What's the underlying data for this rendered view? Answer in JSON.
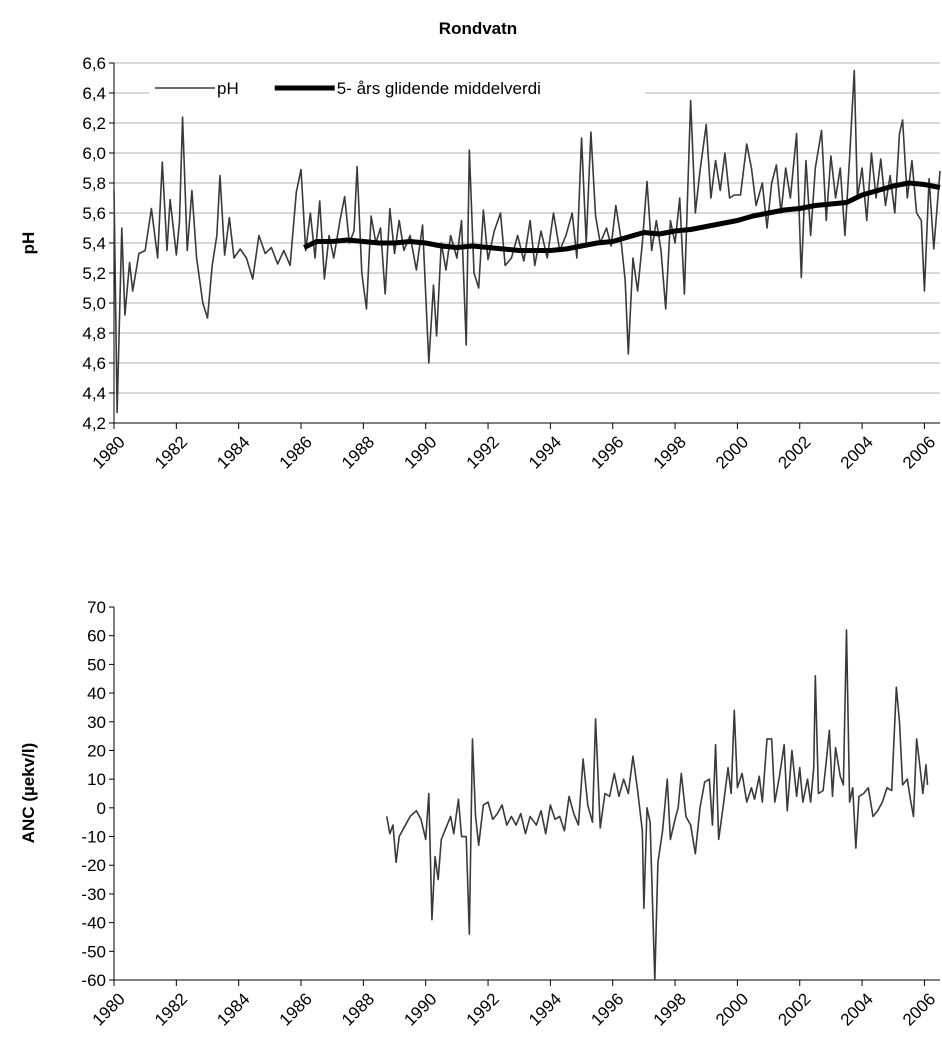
{
  "chart_data": [
    {
      "type": "line",
      "title": "Rondvatn",
      "y_label": "pH",
      "xlim": [
        1980,
        2006.5
      ],
      "xticks": [
        1980,
        1982,
        1984,
        1986,
        1988,
        1990,
        1992,
        1994,
        1996,
        1998,
        2000,
        2002,
        2004,
        2006
      ],
      "ylim": [
        4.2,
        6.6
      ],
      "yticks": [
        {
          "value": 4.2,
          "label": "4,2"
        },
        {
          "value": 4.4,
          "label": "4,4"
        },
        {
          "value": 4.6,
          "label": "4,6"
        },
        {
          "value": 4.8,
          "label": "4,8"
        },
        {
          "value": 5.0,
          "label": "5,0"
        },
        {
          "value": 5.2,
          "label": "5,2"
        },
        {
          "value": 5.4,
          "label": "5,4"
        },
        {
          "value": 5.6,
          "label": "5,6"
        },
        {
          "value": 5.8,
          "label": "5,8"
        },
        {
          "value": 6.0,
          "label": "6,0"
        },
        {
          "value": 6.2,
          "label": "6,2"
        },
        {
          "value": 6.4,
          "label": "6,4"
        },
        {
          "value": 6.6,
          "label": "6,6"
        }
      ],
      "grid": true,
      "legend": "upper left",
      "series": [
        {
          "name": "pH",
          "color": "#3a3a3a",
          "width": 1.6,
          "x": [
            1980.0,
            1980.1,
            1980.25,
            1980.35,
            1980.5,
            1980.6,
            1980.8,
            1981.0,
            1981.2,
            1981.4,
            1981.55,
            1981.7,
            1981.8,
            1982.0,
            1982.1,
            1982.2,
            1982.35,
            1982.5,
            1982.65,
            1982.85,
            1983.0,
            1983.15,
            1983.3,
            1983.4,
            1983.55,
            1983.7,
            1983.85,
            1984.05,
            1984.25,
            1984.45,
            1984.65,
            1984.85,
            1985.05,
            1985.25,
            1985.45,
            1985.65,
            1985.85,
            1986.0,
            1986.15,
            1986.3,
            1986.45,
            1986.6,
            1986.75,
            1986.9,
            1987.05,
            1987.25,
            1987.4,
            1987.55,
            1987.7,
            1987.8,
            1987.95,
            1988.1,
            1988.25,
            1988.4,
            1988.55,
            1988.7,
            1988.85,
            1989.0,
            1989.15,
            1989.3,
            1989.5,
            1989.7,
            1989.9,
            1990.1,
            1990.25,
            1990.35,
            1990.5,
            1990.65,
            1990.8,
            1991.0,
            1991.15,
            1991.3,
            1991.4,
            1991.55,
            1991.7,
            1991.85,
            1992.0,
            1992.2,
            1992.4,
            1992.55,
            1992.75,
            1992.95,
            1993.15,
            1993.35,
            1993.5,
            1993.7,
            1993.9,
            1994.1,
            1994.3,
            1994.5,
            1994.7,
            1994.85,
            1995.0,
            1995.15,
            1995.3,
            1995.45,
            1995.6,
            1995.8,
            1995.95,
            1996.1,
            1996.25,
            1996.4,
            1996.5,
            1996.65,
            1996.8,
            1996.95,
            1997.1,
            1997.25,
            1997.4,
            1997.55,
            1997.7,
            1997.85,
            1998.0,
            1998.15,
            1998.3,
            1998.5,
            1998.65,
            1998.8,
            1999.0,
            1999.15,
            1999.3,
            1999.45,
            1999.6,
            1999.75,
            1999.9,
            2000.1,
            2000.3,
            2000.45,
            2000.6,
            2000.8,
            2000.95,
            2001.1,
            2001.25,
            2001.4,
            2001.55,
            2001.7,
            2001.9,
            2002.05,
            2002.2,
            2002.35,
            2002.5,
            2002.7,
            2002.85,
            2003.0,
            2003.15,
            2003.3,
            2003.45,
            2003.6,
            2003.75,
            2003.85,
            2004.0,
            2004.15,
            2004.3,
            2004.45,
            2004.6,
            2004.75,
            2004.9,
            2005.05,
            2005.2,
            2005.3,
            2005.45,
            2005.6,
            2005.75,
            2005.9,
            2006.0,
            2006.15,
            2006.3,
            2006.5
          ],
          "values": [
            5.75,
            4.27,
            5.5,
            4.92,
            5.27,
            5.08,
            5.33,
            5.35,
            5.63,
            5.3,
            5.94,
            5.35,
            5.69,
            5.32,
            5.54,
            6.24,
            5.35,
            5.75,
            5.3,
            5.0,
            4.9,
            5.25,
            5.45,
            5.85,
            5.32,
            5.57,
            5.3,
            5.36,
            5.3,
            5.16,
            5.45,
            5.33,
            5.37,
            5.26,
            5.35,
            5.25,
            5.74,
            5.89,
            5.35,
            5.6,
            5.3,
            5.68,
            5.16,
            5.45,
            5.3,
            5.55,
            5.71,
            5.4,
            5.48,
            5.91,
            5.2,
            4.96,
            5.58,
            5.4,
            5.5,
            5.06,
            5.63,
            5.33,
            5.55,
            5.35,
            5.45,
            5.22,
            5.52,
            4.6,
            5.12,
            4.78,
            5.4,
            5.22,
            5.45,
            5.3,
            5.55,
            4.72,
            6.02,
            5.2,
            5.1,
            5.62,
            5.29,
            5.48,
            5.6,
            5.25,
            5.3,
            5.45,
            5.28,
            5.55,
            5.25,
            5.48,
            5.3,
            5.6,
            5.35,
            5.45,
            5.6,
            5.3,
            6.1,
            5.4,
            6.14,
            5.58,
            5.4,
            5.5,
            5.38,
            5.65,
            5.45,
            5.15,
            4.66,
            5.3,
            5.08,
            5.4,
            5.81,
            5.35,
            5.55,
            5.35,
            4.96,
            5.55,
            5.4,
            5.7,
            5.06,
            6.35,
            5.6,
            5.88,
            6.19,
            5.7,
            5.95,
            5.75,
            6.0,
            5.7,
            5.72,
            5.72,
            6.06,
            5.9,
            5.65,
            5.8,
            5.5,
            5.8,
            5.92,
            5.6,
            5.9,
            5.7,
            6.13,
            5.17,
            5.95,
            5.45,
            5.9,
            6.15,
            5.55,
            5.98,
            5.7,
            5.9,
            5.45,
            5.97,
            6.55,
            5.7,
            5.9,
            5.55,
            6.0,
            5.7,
            5.96,
            5.65,
            5.85,
            5.6,
            6.13,
            6.22,
            5.7,
            5.95,
            5.6,
            5.55,
            5.08,
            5.83,
            5.36,
            5.88
          ]
        },
        {
          "name": "5- års glidende middelverdi",
          "color": "#000000",
          "width": 5,
          "x": [
            1986.1,
            1986.5,
            1987,
            1987.5,
            1988,
            1988.5,
            1989,
            1989.5,
            1990,
            1990.5,
            1991,
            1991.5,
            1992,
            1992.5,
            1993,
            1993.5,
            1994,
            1994.5,
            1995,
            1995.5,
            1996,
            1996.5,
            1997,
            1997.5,
            1998,
            1998.5,
            1999,
            1999.5,
            2000,
            2000.5,
            2001,
            2001.5,
            2002,
            2002.5,
            2003,
            2003.5,
            2004,
            2004.5,
            2005,
            2005.5,
            2006,
            2006.5
          ],
          "values": [
            5.37,
            5.41,
            5.41,
            5.42,
            5.41,
            5.4,
            5.4,
            5.41,
            5.4,
            5.38,
            5.37,
            5.38,
            5.37,
            5.36,
            5.35,
            5.35,
            5.35,
            5.36,
            5.38,
            5.4,
            5.41,
            5.44,
            5.47,
            5.46,
            5.48,
            5.49,
            5.51,
            5.53,
            5.55,
            5.58,
            5.6,
            5.62,
            5.63,
            5.65,
            5.66,
            5.67,
            5.72,
            5.75,
            5.78,
            5.8,
            5.79,
            5.77
          ]
        }
      ]
    },
    {
      "type": "line",
      "y_label": "ANC (µekv/l)",
      "xlim": [
        1980,
        2006.5
      ],
      "xticks": [
        1980,
        1982,
        1984,
        1986,
        1988,
        1990,
        1992,
        1994,
        1996,
        1998,
        2000,
        2002,
        2004,
        2006
      ],
      "ylim": [
        -60,
        70
      ],
      "yticks": [
        -60,
        -50,
        -40,
        -30,
        -20,
        -10,
        0,
        10,
        20,
        30,
        40,
        50,
        60,
        70
      ],
      "grid": false,
      "series": [
        {
          "name": "ANC",
          "color": "#3a3a3a",
          "width": 1.6,
          "x": [
            1988.75,
            1988.85,
            1988.95,
            1989.05,
            1989.15,
            1989.35,
            1989.5,
            1989.7,
            1989.85,
            1990.0,
            1990.1,
            1990.2,
            1990.3,
            1990.4,
            1990.5,
            1990.65,
            1990.8,
            1990.9,
            1991.05,
            1991.15,
            1991.3,
            1991.4,
            1991.5,
            1991.6,
            1991.7,
            1991.85,
            1992.0,
            1992.15,
            1992.3,
            1992.45,
            1992.6,
            1992.75,
            1992.9,
            1993.05,
            1993.2,
            1993.35,
            1993.55,
            1993.7,
            1993.85,
            1994.0,
            1994.15,
            1994.3,
            1994.45,
            1994.6,
            1994.75,
            1994.9,
            1995.05,
            1995.2,
            1995.35,
            1995.45,
            1995.6,
            1995.75,
            1995.9,
            1996.05,
            1996.2,
            1996.35,
            1996.5,
            1996.65,
            1996.8,
            1996.95,
            1997.0,
            1997.1,
            1997.2,
            1997.35,
            1997.45,
            1997.6,
            1997.75,
            1997.85,
            1998.0,
            1998.1,
            1998.2,
            1998.35,
            1998.5,
            1998.65,
            1998.8,
            1998.95,
            1999.1,
            1999.2,
            1999.3,
            1999.4,
            1999.55,
            1999.7,
            1999.8,
            1999.9,
            2000.0,
            2000.15,
            2000.3,
            2000.45,
            2000.55,
            2000.7,
            2000.8,
            2000.95,
            2001.1,
            2001.2,
            2001.35,
            2001.5,
            2001.6,
            2001.75,
            2001.9,
            2002.0,
            2002.1,
            2002.25,
            2002.35,
            2002.45,
            2002.5,
            2002.6,
            2002.75,
            2002.85,
            2002.95,
            2003.05,
            2003.15,
            2003.3,
            2003.4,
            2003.5,
            2003.6,
            2003.7,
            2003.8,
            2003.9,
            2004.05,
            2004.2,
            2004.35,
            2004.5,
            2004.65,
            2004.8,
            2004.95,
            2005.1,
            2005.2,
            2005.3,
            2005.45,
            2005.55,
            2005.65,
            2005.75,
            2005.85,
            2005.95,
            2006.05,
            2006.1
          ],
          "values": [
            -3,
            -9,
            -6,
            -19,
            -10,
            -6,
            -3,
            -1,
            -4,
            -11,
            5,
            -39,
            -17,
            -25,
            -11,
            -7,
            -3,
            -9,
            3,
            -10,
            -10,
            -44,
            24,
            -3,
            -13,
            1,
            2,
            -4,
            -2,
            1,
            -6,
            -3,
            -6,
            -2,
            -9,
            -3,
            -6,
            -1,
            -9,
            1,
            -4,
            -3,
            -8,
            4,
            -2,
            -6,
            17,
            1,
            -5,
            31,
            -7,
            5,
            4,
            12,
            4,
            10,
            5,
            18,
            6,
            -8,
            -35,
            0,
            -5,
            -60,
            -19,
            -8,
            10,
            -11,
            -4,
            0,
            12,
            -3,
            -6,
            -16,
            0,
            9,
            10,
            -6,
            22,
            -11,
            1,
            14,
            5,
            34,
            7,
            12,
            2,
            7,
            3,
            11,
            2,
            24,
            24,
            2,
            11,
            22,
            -1,
            20,
            4,
            14,
            2,
            10,
            2,
            14,
            46,
            5,
            6,
            16,
            27,
            4,
            21,
            11,
            8,
            62,
            2,
            7,
            -14,
            4,
            5,
            7,
            -3,
            -1,
            2,
            7,
            6,
            42,
            30,
            8,
            10,
            3,
            -3,
            24,
            15,
            5,
            15,
            8
          ]
        }
      ]
    }
  ]
}
